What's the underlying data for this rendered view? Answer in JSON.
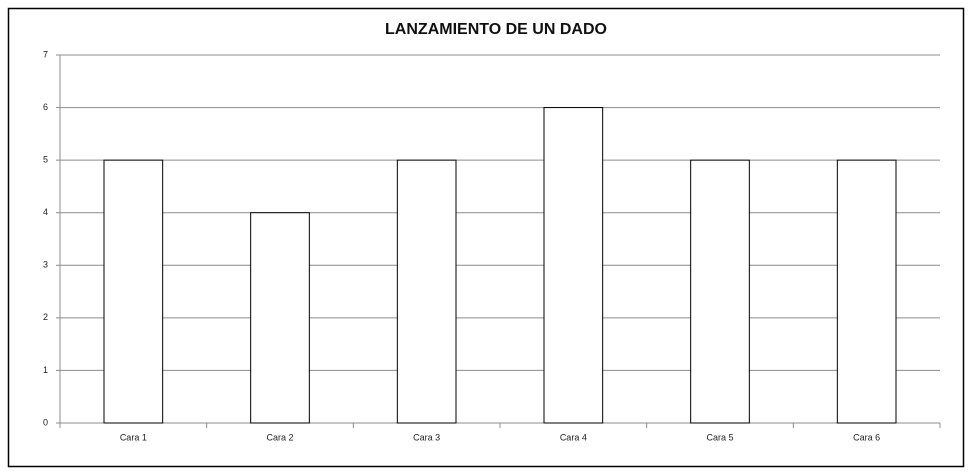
{
  "chart_data": {
    "type": "bar",
    "title": "LANZAMIENTO DE UN DADO",
    "categories": [
      "Cara 1",
      "Cara 2",
      "Cara 3",
      "Cara 4",
      "Cara 5",
      "Cara 6"
    ],
    "values": [
      5,
      4,
      5,
      6,
      5,
      5
    ],
    "color": "#ffffff",
    "ylim": [
      0,
      7
    ],
    "yticks": [
      0,
      1,
      2,
      3,
      4,
      5,
      6,
      7
    ],
    "grid": true
  }
}
